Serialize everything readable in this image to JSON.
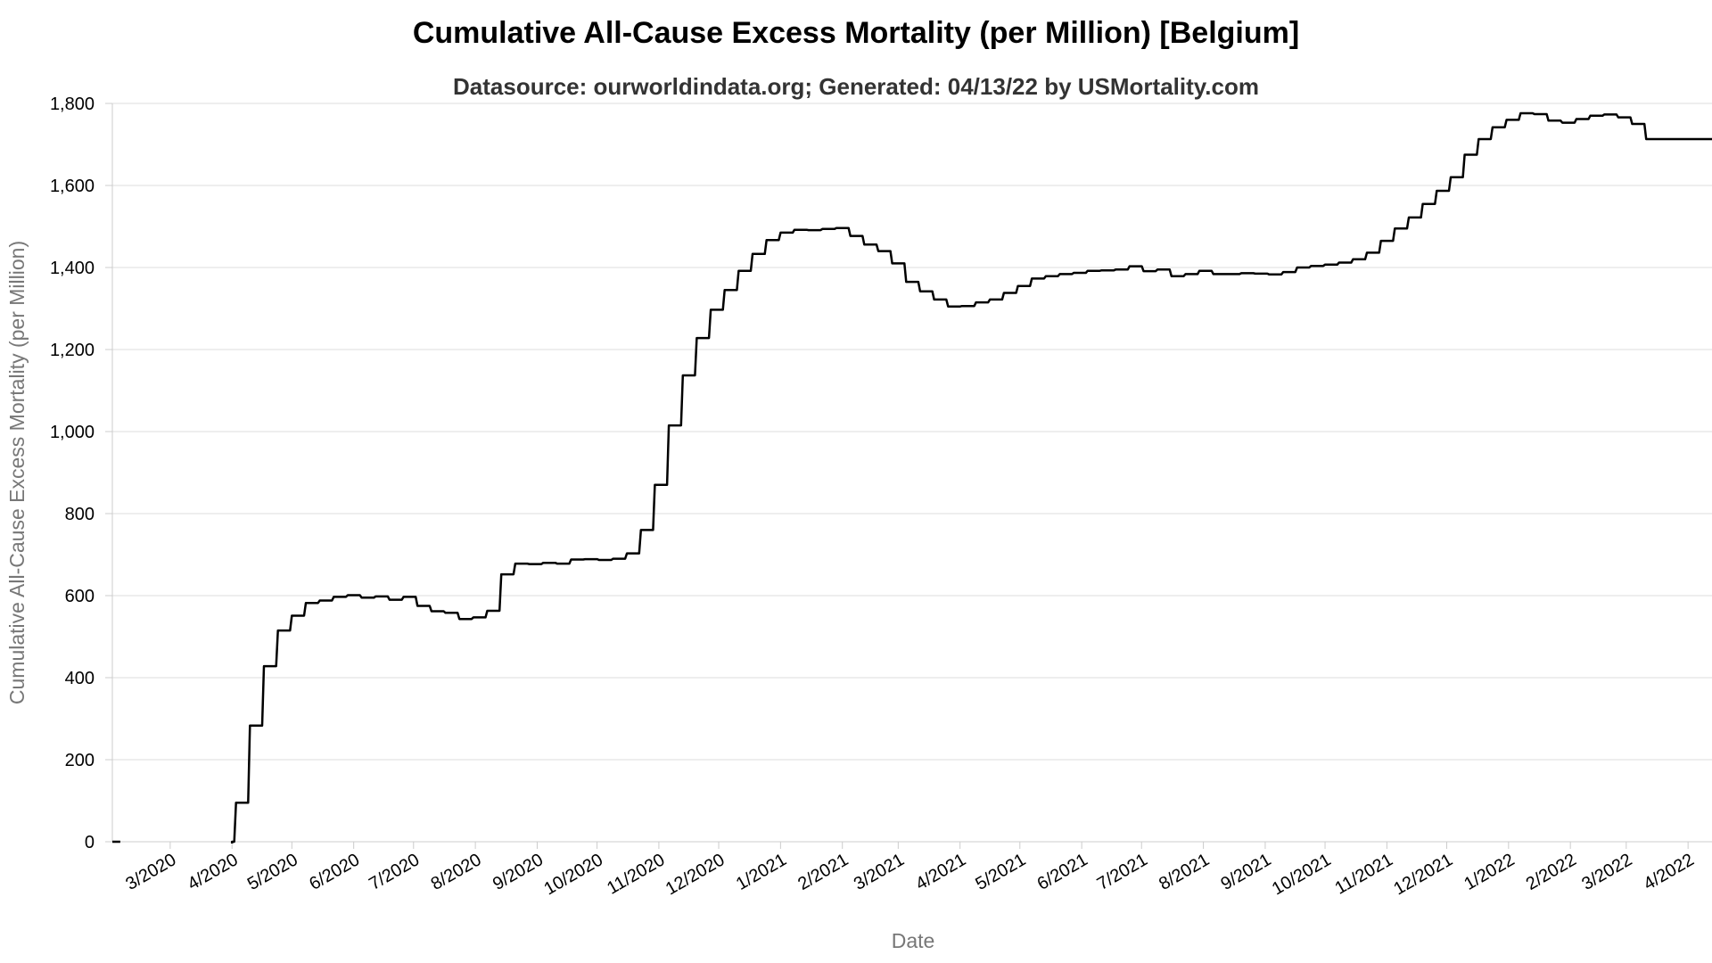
{
  "chart_data": {
    "type": "line",
    "title": "Cumulative All-Cause Excess Mortality (per Million) [Belgium]",
    "subtitle": "Datasource: ourworldindata.org; Generated: 04/13/22 by USMortality.com",
    "xlabel": "Date",
    "ylabel": "Cumulative All-Cause Excess Mortality (per Million)",
    "ylim": [
      0,
      1800
    ],
    "xlim": [
      "2020-02-01",
      "2022-04-13"
    ],
    "grid": true,
    "y_ticks": [
      {
        "value": 0,
        "label": "0"
      },
      {
        "value": 200,
        "label": "200"
      },
      {
        "value": 400,
        "label": "400"
      },
      {
        "value": 600,
        "label": "600"
      },
      {
        "value": 800,
        "label": "800"
      },
      {
        "value": 1000,
        "label": "1,000"
      },
      {
        "value": 1200,
        "label": "1,200"
      },
      {
        "value": 1400,
        "label": "1,400"
      },
      {
        "value": 1600,
        "label": "1,600"
      },
      {
        "value": 1800,
        "label": "1,800"
      }
    ],
    "x_ticks": [
      {
        "date": "2020-03-01",
        "label": "3/2020"
      },
      {
        "date": "2020-04-01",
        "label": "4/2020"
      },
      {
        "date": "2020-05-01",
        "label": "5/2020"
      },
      {
        "date": "2020-06-01",
        "label": "6/2020"
      },
      {
        "date": "2020-07-01",
        "label": "7/2020"
      },
      {
        "date": "2020-08-01",
        "label": "8/2020"
      },
      {
        "date": "2020-09-01",
        "label": "9/2020"
      },
      {
        "date": "2020-10-01",
        "label": "10/2020"
      },
      {
        "date": "2020-11-01",
        "label": "11/2020"
      },
      {
        "date": "2020-12-01",
        "label": "12/2020"
      },
      {
        "date": "2021-01-01",
        "label": "1/2021"
      },
      {
        "date": "2021-02-01",
        "label": "2/2021"
      },
      {
        "date": "2021-03-01",
        "label": "3/2021"
      },
      {
        "date": "2021-04-01",
        "label": "4/2021"
      },
      {
        "date": "2021-05-01",
        "label": "5/2021"
      },
      {
        "date": "2021-06-01",
        "label": "6/2021"
      },
      {
        "date": "2021-07-01",
        "label": "7/2021"
      },
      {
        "date": "2021-08-01",
        "label": "8/2021"
      },
      {
        "date": "2021-09-01",
        "label": "9/2021"
      },
      {
        "date": "2021-10-01",
        "label": "10/2021"
      },
      {
        "date": "2021-11-01",
        "label": "11/2021"
      },
      {
        "date": "2021-12-01",
        "label": "12/2021"
      },
      {
        "date": "2022-01-01",
        "label": "1/2022"
      },
      {
        "date": "2022-02-01",
        "label": "2/2022"
      },
      {
        "date": "2022-03-01",
        "label": "3/2022"
      },
      {
        "date": "2022-04-01",
        "label": "4/2022"
      }
    ],
    "series": [
      {
        "line_color": "#000000",
        "step": true,
        "points": [
          [
            "2020-02-01",
            0
          ],
          [
            "2020-02-05",
            0
          ],
          [
            "2020-04-01",
            0
          ],
          [
            "2020-04-03",
            95
          ],
          [
            "2020-04-10",
            283
          ],
          [
            "2020-04-17",
            428
          ],
          [
            "2020-04-24",
            515
          ],
          [
            "2020-05-01",
            551
          ],
          [
            "2020-05-08",
            582
          ],
          [
            "2020-05-15",
            588
          ],
          [
            "2020-05-22",
            597
          ],
          [
            "2020-05-29",
            601
          ],
          [
            "2020-06-05",
            595
          ],
          [
            "2020-06-12",
            598
          ],
          [
            "2020-06-19",
            590
          ],
          [
            "2020-06-26",
            597
          ],
          [
            "2020-07-03",
            575
          ],
          [
            "2020-07-10",
            562
          ],
          [
            "2020-07-17",
            558
          ],
          [
            "2020-07-24",
            543
          ],
          [
            "2020-07-31",
            547
          ],
          [
            "2020-08-07",
            563
          ],
          [
            "2020-08-14",
            652
          ],
          [
            "2020-08-21",
            678
          ],
          [
            "2020-08-28",
            677
          ],
          [
            "2020-09-04",
            680
          ],
          [
            "2020-09-11",
            678
          ],
          [
            "2020-09-18",
            688
          ],
          [
            "2020-09-25",
            689
          ],
          [
            "2020-10-02",
            687
          ],
          [
            "2020-10-09",
            690
          ],
          [
            "2020-10-16",
            703
          ],
          [
            "2020-10-23",
            760
          ],
          [
            "2020-10-30",
            870
          ],
          [
            "2020-11-06",
            1015
          ],
          [
            "2020-11-13",
            1137
          ],
          [
            "2020-11-20",
            1228
          ],
          [
            "2020-11-27",
            1297
          ],
          [
            "2020-12-04",
            1345
          ],
          [
            "2020-12-11",
            1392
          ],
          [
            "2020-12-18",
            1433
          ],
          [
            "2020-12-25",
            1467
          ],
          [
            "2021-01-01",
            1485
          ],
          [
            "2021-01-08",
            1492
          ],
          [
            "2021-01-15",
            1491
          ],
          [
            "2021-01-22",
            1494
          ],
          [
            "2021-01-29",
            1496
          ],
          [
            "2021-02-05",
            1477
          ],
          [
            "2021-02-12",
            1456
          ],
          [
            "2021-02-19",
            1440
          ],
          [
            "2021-02-26",
            1410
          ],
          [
            "2021-03-05",
            1365
          ],
          [
            "2021-03-12",
            1342
          ],
          [
            "2021-03-19",
            1322
          ],
          [
            "2021-03-26",
            1305
          ],
          [
            "2021-04-02",
            1306
          ],
          [
            "2021-04-09",
            1315
          ],
          [
            "2021-04-16",
            1322
          ],
          [
            "2021-04-23",
            1338
          ],
          [
            "2021-04-30",
            1355
          ],
          [
            "2021-05-07",
            1373
          ],
          [
            "2021-05-14",
            1379
          ],
          [
            "2021-05-21",
            1384
          ],
          [
            "2021-05-28",
            1387
          ],
          [
            "2021-06-04",
            1392
          ],
          [
            "2021-06-11",
            1393
          ],
          [
            "2021-06-18",
            1395
          ],
          [
            "2021-06-25",
            1403
          ],
          [
            "2021-07-02",
            1391
          ],
          [
            "2021-07-09",
            1395
          ],
          [
            "2021-07-16",
            1379
          ],
          [
            "2021-07-23",
            1384
          ],
          [
            "2021-07-30",
            1392
          ],
          [
            "2021-08-06",
            1384
          ],
          [
            "2021-08-13",
            1384
          ],
          [
            "2021-08-20",
            1386
          ],
          [
            "2021-08-27",
            1385
          ],
          [
            "2021-09-03",
            1383
          ],
          [
            "2021-09-10",
            1389
          ],
          [
            "2021-09-17",
            1400
          ],
          [
            "2021-09-24",
            1404
          ],
          [
            "2021-10-01",
            1407
          ],
          [
            "2021-10-08",
            1412
          ],
          [
            "2021-10-15",
            1420
          ],
          [
            "2021-10-22",
            1436
          ],
          [
            "2021-10-29",
            1465
          ],
          [
            "2021-11-05",
            1495
          ],
          [
            "2021-11-12",
            1522
          ],
          [
            "2021-11-19",
            1555
          ],
          [
            "2021-11-26",
            1587
          ],
          [
            "2021-12-03",
            1620
          ],
          [
            "2021-12-10",
            1675
          ],
          [
            "2021-12-17",
            1713
          ],
          [
            "2021-12-24",
            1742
          ],
          [
            "2021-12-31",
            1760
          ],
          [
            "2022-01-07",
            1776
          ],
          [
            "2022-01-14",
            1774
          ],
          [
            "2022-01-21",
            1758
          ],
          [
            "2022-01-28",
            1753
          ],
          [
            "2022-02-04",
            1762
          ],
          [
            "2022-02-11",
            1770
          ],
          [
            "2022-02-18",
            1773
          ],
          [
            "2022-02-25",
            1766
          ],
          [
            "2022-03-04",
            1750
          ],
          [
            "2022-03-11",
            1713
          ],
          [
            "2022-04-13",
            1713
          ]
        ]
      }
    ]
  }
}
